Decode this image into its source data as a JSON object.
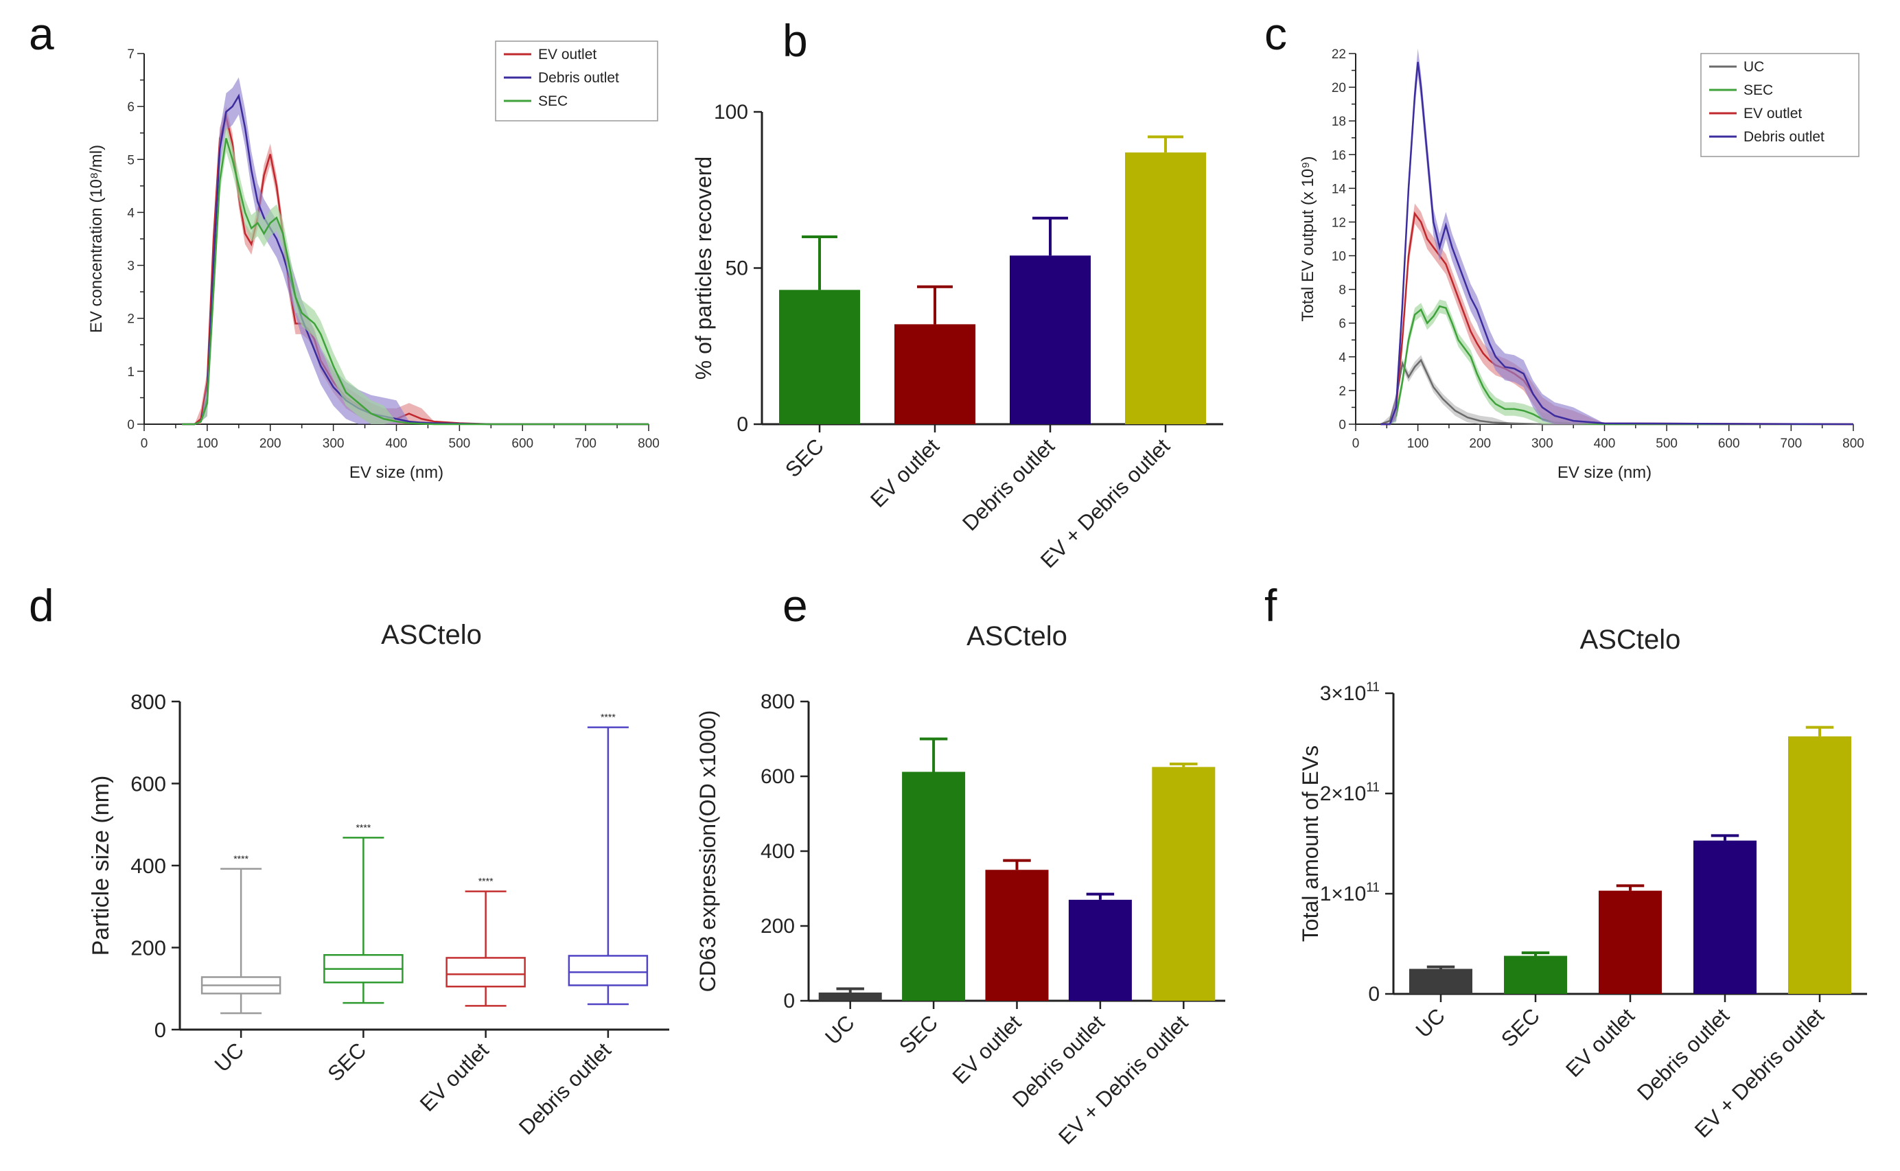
{
  "colors": {
    "red": "#c0282d",
    "red_fill": "#e08a8c",
    "blue": "#3c2d9e",
    "blue_fill": "#9283d0",
    "green": "#3fa23a",
    "green_fill": "#9fd59c",
    "grey": "#6b6b6b",
    "grey_fill": "#b8b8b8",
    "bar_green": "#1e7c12",
    "bar_red": "#8b0000",
    "bar_navy": "#21007a",
    "bar_olive": "#b6b400",
    "bar_dark": "#3d3d3d",
    "box_grey": "#9a9a9a",
    "box_green": "#2f9a2f",
    "box_red": "#c43030",
    "box_blue": "#5044c4"
  },
  "chart_data": [
    {
      "panel": "a",
      "type": "line",
      "title": "",
      "xlabel": "EV size (nm)",
      "ylabel": "EV concentration (10⁸/ml)",
      "xlim": [
        0,
        800
      ],
      "ylim": [
        0,
        7
      ],
      "xticks": [
        "0",
        "100",
        "200",
        "300",
        "400",
        "500",
        "600",
        "700",
        "800"
      ],
      "yticks": [
        "0",
        "1",
        "2",
        "3",
        "4",
        "5",
        "6",
        "7"
      ],
      "legend": [
        "EV outlet",
        "Debris outlet",
        "SEC"
      ],
      "legend_position": "top-right",
      "series": [
        {
          "name": "EV outlet",
          "color": "red",
          "x": [
            60,
            80,
            90,
            100,
            110,
            120,
            130,
            140,
            150,
            160,
            170,
            180,
            190,
            200,
            210,
            220,
            230,
            240,
            250,
            260,
            270,
            280,
            300,
            320,
            340,
            360,
            380,
            400,
            420,
            440,
            460,
            500,
            550,
            600,
            700,
            800
          ],
          "y": [
            0,
            0,
            0.1,
            0.8,
            3.5,
            5.4,
            5.8,
            5.3,
            4.3,
            3.6,
            3.4,
            3.9,
            4.7,
            5.1,
            4.5,
            3.6,
            2.6,
            1.9,
            1.9,
            1.8,
            1.6,
            1.2,
            0.8,
            0.5,
            0.35,
            0.2,
            0.1,
            0.1,
            0.2,
            0.1,
            0.05,
            0.02,
            0,
            0,
            0,
            0
          ],
          "band": 0.2
        },
        {
          "name": "Debris outlet",
          "color": "blue",
          "x": [
            60,
            80,
            90,
            100,
            110,
            120,
            130,
            140,
            150,
            160,
            170,
            180,
            190,
            200,
            210,
            220,
            230,
            240,
            250,
            260,
            270,
            280,
            300,
            320,
            340,
            360,
            380,
            400,
            420,
            440,
            460,
            500,
            550,
            600,
            700,
            800
          ],
          "y": [
            0,
            0,
            0.05,
            0.5,
            3.0,
            5.2,
            5.9,
            6.0,
            6.2,
            5.6,
            4.8,
            4.2,
            3.9,
            3.7,
            3.5,
            3.2,
            2.8,
            2.4,
            2.0,
            1.7,
            1.4,
            1.1,
            0.7,
            0.45,
            0.3,
            0.2,
            0.15,
            0.1,
            0.05,
            0.03,
            0.02,
            0.01,
            0,
            0,
            0,
            0
          ],
          "band": 0.35
        },
        {
          "name": "SEC",
          "color": "green",
          "x": [
            60,
            80,
            90,
            100,
            110,
            120,
            130,
            140,
            150,
            160,
            170,
            180,
            190,
            200,
            210,
            220,
            230,
            240,
            250,
            260,
            270,
            280,
            300,
            320,
            340,
            360,
            380,
            400,
            420,
            440,
            460,
            500,
            550,
            600,
            700,
            800
          ],
          "y": [
            0,
            0,
            0.05,
            0.4,
            2.5,
            4.6,
            5.4,
            5.0,
            4.5,
            4.0,
            3.7,
            3.8,
            3.6,
            3.8,
            3.9,
            3.6,
            3.0,
            2.4,
            2.1,
            2.0,
            1.9,
            1.7,
            1.1,
            0.6,
            0.4,
            0.2,
            0.1,
            0.05,
            0.02,
            0.01,
            0,
            0,
            0,
            0,
            0,
            0
          ],
          "band": 0.25
        }
      ]
    },
    {
      "panel": "b",
      "type": "bar",
      "title": "",
      "ylabel": "% of particles recoverd",
      "ylim": [
        0,
        100
      ],
      "yticks": [
        "0",
        "50",
        "100"
      ],
      "categories": [
        "SEC",
        "EV outlet",
        "Debris outlet",
        "EV + Debris outlet"
      ],
      "values": [
        43,
        32,
        54,
        87
      ],
      "errors": [
        17,
        12,
        12,
        5
      ],
      "bar_colors": [
        "bar_green",
        "bar_red",
        "bar_navy",
        "bar_olive"
      ]
    },
    {
      "panel": "c",
      "type": "line",
      "title": "",
      "xlabel": "EV size (nm)",
      "ylabel": "Total EV output (x 10⁹)",
      "xlim": [
        0,
        800
      ],
      "ylim": [
        0,
        22
      ],
      "xticks": [
        "0",
        "100",
        "200",
        "300",
        "400",
        "500",
        "600",
        "700",
        "800"
      ],
      "yticks": [
        "0",
        "2",
        "4",
        "6",
        "8",
        "10",
        "12",
        "14",
        "16",
        "18",
        "20",
        "22"
      ],
      "legend": [
        "UC",
        "SEC",
        "EV outlet",
        "Debris outlet"
      ],
      "legend_position": "top-right",
      "series": [
        {
          "name": "UC",
          "color": "grey",
          "x": [
            40,
            55,
            65,
            75,
            85,
            95,
            105,
            115,
            125,
            140,
            160,
            180,
            200,
            220,
            250,
            300,
            400,
            800
          ],
          "y": [
            0,
            0.2,
            1.5,
            3.6,
            2.8,
            3.4,
            3.8,
            3.0,
            2.2,
            1.5,
            0.8,
            0.4,
            0.2,
            0.1,
            0.05,
            0,
            0,
            0
          ],
          "band": 0.3
        },
        {
          "name": "SEC",
          "color": "green",
          "x": [
            40,
            55,
            65,
            75,
            85,
            95,
            105,
            115,
            125,
            135,
            145,
            155,
            165,
            175,
            185,
            195,
            205,
            215,
            225,
            240,
            255,
            270,
            285,
            300,
            320,
            350,
            400,
            800
          ],
          "y": [
            0,
            0,
            0.5,
            2.5,
            5.0,
            6.5,
            6.8,
            6.0,
            6.4,
            7.0,
            6.9,
            6.0,
            5.0,
            4.5,
            4.0,
            3.0,
            2.2,
            1.6,
            1.2,
            0.9,
            0.9,
            0.8,
            0.6,
            0.3,
            0.1,
            0.05,
            0,
            0
          ],
          "band": 0.4
        },
        {
          "name": "EV outlet",
          "color": "red",
          "x": [
            40,
            55,
            65,
            75,
            85,
            95,
            105,
            115,
            125,
            135,
            145,
            155,
            165,
            175,
            185,
            195,
            205,
            215,
            225,
            240,
            255,
            270,
            285,
            300,
            320,
            350,
            400,
            800
          ],
          "y": [
            0,
            0,
            1.0,
            5.0,
            10.0,
            12.5,
            12.0,
            11.0,
            10.5,
            10.0,
            9.5,
            8.5,
            7.5,
            6.5,
            5.5,
            4.8,
            4.2,
            3.8,
            3.5,
            3.3,
            3.0,
            2.6,
            1.8,
            1.0,
            0.5,
            0.2,
            0.05,
            0
          ],
          "band": 0.6
        },
        {
          "name": "Debris outlet",
          "color": "blue",
          "x": [
            40,
            55,
            65,
            75,
            85,
            95,
            100,
            105,
            115,
            125,
            135,
            145,
            155,
            165,
            175,
            185,
            195,
            205,
            215,
            225,
            240,
            255,
            270,
            285,
            300,
            320,
            350,
            400,
            800
          ],
          "y": [
            0,
            0,
            1.0,
            7.0,
            14.0,
            19.5,
            21.5,
            20.0,
            16.0,
            12.0,
            10.5,
            11.8,
            10.5,
            9.5,
            8.5,
            7.5,
            6.8,
            5.8,
            4.8,
            4.0,
            3.4,
            3.3,
            3.0,
            1.8,
            1.0,
            0.5,
            0.2,
            0.05,
            0
          ],
          "band": 0.8
        }
      ]
    },
    {
      "panel": "d",
      "type": "box",
      "title": "ASCtelo",
      "ylabel": "Particle size (nm)",
      "ylim": [
        0,
        800
      ],
      "yticks": [
        "0",
        "200",
        "400",
        "600",
        "800"
      ],
      "categories": [
        "UC",
        "SEC",
        "EV outlet",
        "Debris outlet"
      ],
      "boxes": [
        {
          "min": 40,
          "q1": 88,
          "median": 108,
          "q3": 128,
          "max": 392,
          "color": "box_grey",
          "annotation": "****"
        },
        {
          "min": 65,
          "q1": 115,
          "median": 148,
          "q3": 182,
          "max": 468,
          "color": "box_green",
          "annotation": "****"
        },
        {
          "min": 58,
          "q1": 105,
          "median": 135,
          "q3": 175,
          "max": 337,
          "color": "box_red",
          "annotation": "****"
        },
        {
          "min": 62,
          "q1": 108,
          "median": 140,
          "q3": 180,
          "max": 737,
          "color": "box_blue",
          "annotation": "****"
        }
      ]
    },
    {
      "panel": "e",
      "type": "bar",
      "title": "ASCtelo",
      "ylabel": "CD63 expression(OD x1000)",
      "ylim": [
        0,
        800
      ],
      "yticks": [
        "0",
        "200",
        "400",
        "600",
        "800"
      ],
      "categories": [
        "UC",
        "SEC",
        "EV outlet",
        "Debris outlet",
        "EV + Debris outlet"
      ],
      "values": [
        22,
        612,
        350,
        270,
        625
      ],
      "errors": [
        10,
        88,
        25,
        15,
        8
      ],
      "bar_colors": [
        "bar_dark",
        "bar_green",
        "bar_red",
        "bar_navy",
        "bar_olive"
      ]
    },
    {
      "panel": "f",
      "type": "bar",
      "title": "ASCtelo",
      "ylabel": "Total amount of EVs",
      "ylim": [
        0,
        3
      ],
      "ytick_labels": [
        {
          "base": "0",
          "exp": ""
        },
        {
          "base": "1×10",
          "exp": "11"
        },
        {
          "base": "2×10",
          "exp": "11"
        },
        {
          "base": "3×10",
          "exp": "11"
        }
      ],
      "categories": [
        "UC",
        "SEC",
        "EV outlet",
        "Debris outlet",
        "EV + Debris outlet"
      ],
      "values": [
        0.25,
        0.38,
        1.03,
        1.53,
        2.57
      ],
      "errors": [
        0.02,
        0.03,
        0.05,
        0.05,
        0.09
      ],
      "bar_colors": [
        "bar_dark",
        "bar_green",
        "bar_red",
        "bar_navy",
        "bar_olive"
      ]
    }
  ],
  "panel_labels": [
    "a",
    "b",
    "c",
    "d",
    "e",
    "f"
  ]
}
